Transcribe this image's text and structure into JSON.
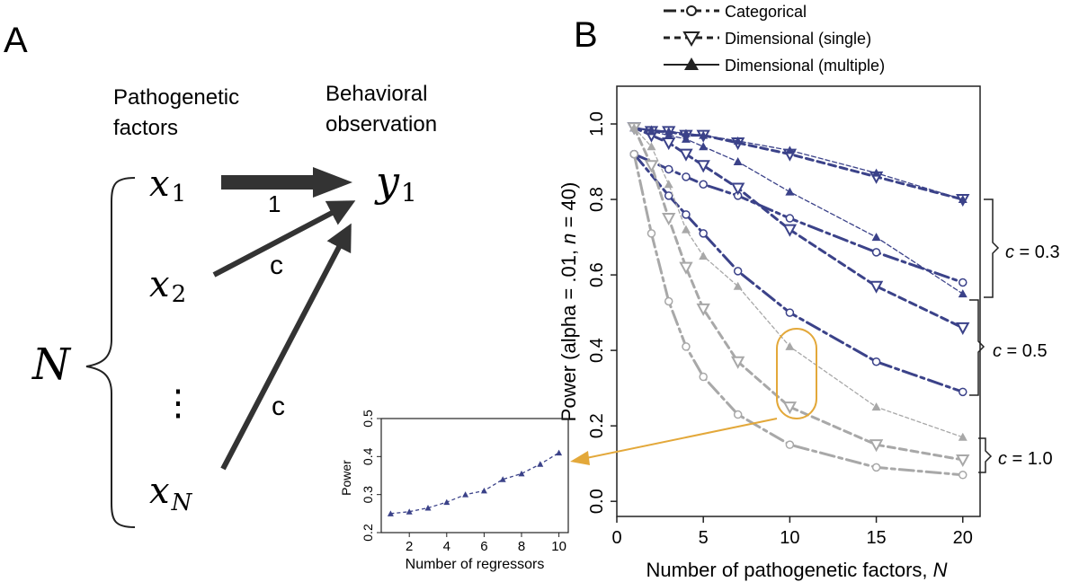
{
  "panel_a": {
    "label": "A",
    "col_left": [
      "Pathogenetic",
      "factors"
    ],
    "col_right": [
      "Behavioral",
      "observation"
    ],
    "x1_base": "x",
    "x1_sub": "1",
    "x2_base": "x",
    "x2_sub": "2",
    "xN_base": "x",
    "xN_sub": "N",
    "y1_base": "y",
    "y1_sub": "1",
    "N_label": "N",
    "dots": "⋮",
    "weight_1": "1",
    "weight_c1": "c",
    "weight_c2": "c"
  },
  "panel_b": {
    "label": "B",
    "legend": [
      "Categorical",
      "Dimensional (single)",
      "Dimensional (multiple)"
    ],
    "bracket_labels": [
      {
        "c": "c",
        "val": " = 0.3"
      },
      {
        "c": "c",
        "val": " = 0.5"
      },
      {
        "c": "c",
        "val": " = 1.0"
      }
    ],
    "ylabel_parts": {
      "pre": "Power (alpha = .01, ",
      "n": "n",
      "post": " = 40)"
    },
    "xlabel_parts": {
      "pre": "Number of pathogenetic factors, ",
      "N": "N"
    }
  },
  "colors": {
    "blue": "#3b4289",
    "gray": "#a8a8a8",
    "accent": "#e3a83a"
  },
  "chart_data": [
    {
      "type": "line",
      "title": "",
      "xlabel": "Number of pathogenetic factors, N",
      "ylabel": "Power (alpha = .01, n = 40)",
      "xlim": [
        0,
        21
      ],
      "ylim": [
        -0.04,
        1.1
      ],
      "xticks": [
        0,
        5,
        10,
        15,
        20
      ],
      "yticks": [
        0.0,
        0.2,
        0.4,
        0.6,
        0.8,
        1.0
      ],
      "legend": "top",
      "series": [
        {
          "name": "Categorical c=0.3",
          "method": "categorical",
          "c": 0.3,
          "x": [
            1,
            3,
            4,
            5,
            7,
            10,
            15,
            20
          ],
          "values": [
            0.92,
            0.88,
            0.86,
            0.84,
            0.81,
            0.75,
            0.66,
            0.58
          ]
        },
        {
          "name": "Dimensional (single) c=0.3",
          "method": "single",
          "c": 0.3,
          "x": [
            1,
            2,
            3,
            4,
            5,
            7,
            10,
            15,
            20
          ],
          "values": [
            0.99,
            0.98,
            0.98,
            0.97,
            0.97,
            0.95,
            0.92,
            0.86,
            0.8
          ]
        },
        {
          "name": "Dimensional (multiple) c=0.3",
          "method": "multiple",
          "c": 0.3,
          "x": [
            1,
            2,
            3,
            4,
            5,
            7,
            10,
            15,
            20
          ],
          "values": [
            0.99,
            0.985,
            0.98,
            0.975,
            0.97,
            0.955,
            0.93,
            0.87,
            0.8
          ]
        },
        {
          "name": "Categorical c=0.5",
          "method": "categorical",
          "c": 0.5,
          "x": [
            1,
            3,
            4,
            5,
            7,
            10,
            15,
            20
          ],
          "values": [
            0.92,
            0.81,
            0.76,
            0.71,
            0.61,
            0.5,
            0.37,
            0.29
          ]
        },
        {
          "name": "Dimensional (single) c=0.5",
          "method": "single",
          "c": 0.5,
          "x": [
            1,
            2,
            3,
            4,
            5,
            7,
            10,
            15,
            20
          ],
          "values": [
            0.99,
            0.97,
            0.95,
            0.92,
            0.89,
            0.83,
            0.72,
            0.57,
            0.46
          ]
        },
        {
          "name": "Dimensional (multiple) c=0.5",
          "method": "multiple",
          "c": 0.5,
          "x": [
            1,
            2,
            3,
            4,
            5,
            7,
            10,
            15,
            20
          ],
          "values": [
            0.99,
            0.98,
            0.97,
            0.96,
            0.94,
            0.9,
            0.82,
            0.7,
            0.55
          ]
        },
        {
          "name": "Categorical c=1.0",
          "method": "categorical",
          "c": 1.0,
          "x": [
            1,
            2,
            3,
            4,
            5,
            7,
            10,
            15,
            20
          ],
          "values": [
            0.92,
            0.71,
            0.53,
            0.41,
            0.33,
            0.23,
            0.15,
            0.09,
            0.07
          ]
        },
        {
          "name": "Dimensional (single) c=1.0",
          "method": "single",
          "c": 1.0,
          "x": [
            1,
            2,
            3,
            4,
            5,
            7,
            10,
            15,
            20
          ],
          "values": [
            0.99,
            0.89,
            0.75,
            0.62,
            0.51,
            0.37,
            0.25,
            0.15,
            0.11
          ]
        },
        {
          "name": "Dimensional (multiple) c=1.0",
          "method": "multiple",
          "c": 1.0,
          "x": [
            1,
            2,
            3,
            4,
            5,
            7,
            10,
            15,
            20
          ],
          "values": [
            0.99,
            0.94,
            0.84,
            0.72,
            0.65,
            0.57,
            0.41,
            0.25,
            0.17
          ]
        }
      ]
    },
    {
      "type": "line",
      "title": "",
      "xlabel": "Number of regressors",
      "ylabel": "Power",
      "xlim": [
        0.5,
        10.5
      ],
      "ylim": [
        0.2,
        0.5
      ],
      "xticks": [
        2,
        4,
        6,
        8,
        10
      ],
      "yticks": [
        0.2,
        0.3,
        0.4,
        0.5
      ],
      "series": [
        {
          "name": "Power vs regressors",
          "x": [
            1,
            2,
            3,
            4,
            5,
            6,
            7,
            8,
            9,
            10
          ],
          "values": [
            0.25,
            0.255,
            0.265,
            0.28,
            0.3,
            0.31,
            0.34,
            0.355,
            0.38,
            0.41
          ]
        }
      ]
    }
  ]
}
